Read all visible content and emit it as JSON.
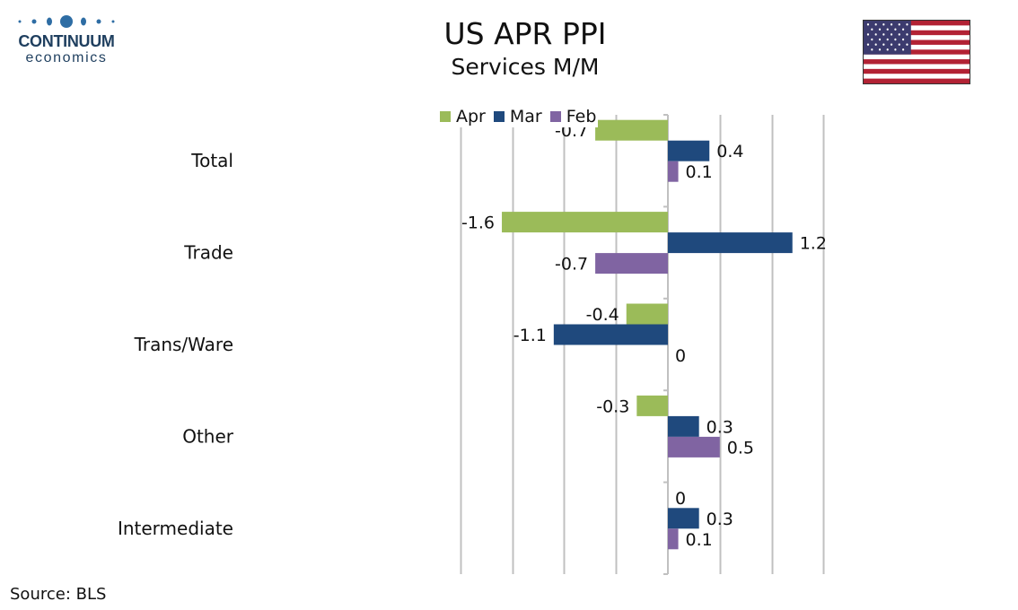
{
  "brand": {
    "name": "CONTINUUM",
    "sub": "economics"
  },
  "title": "US APR PPI",
  "subtitle": "Services M/M",
  "flag_icon": "us-flag",
  "source": "Source: BLS",
  "colors": {
    "Apr": "#9bbb59",
    "Mar": "#1f497d",
    "Feb": "#8064a2",
    "grid": "#c0c0c0",
    "logo": "#2e6da4"
  },
  "chart_data": {
    "type": "bar",
    "orientation": "horizontal",
    "categories": [
      "Total",
      "Trade",
      "Trans/Ware",
      "Other",
      "Intermediate"
    ],
    "series": [
      {
        "name": "Apr",
        "values": [
          -0.7,
          -1.6,
          -0.4,
          -0.3,
          0
        ]
      },
      {
        "name": "Mar",
        "values": [
          0.4,
          1.2,
          -1.1,
          0.3,
          0.3
        ]
      },
      {
        "name": "Feb",
        "values": [
          0.1,
          -0.7,
          0,
          0.5,
          0.1
        ]
      }
    ],
    "data_labels": [
      [
        "-0.7",
        "-1.6",
        "-0.4",
        "-0.3",
        "0"
      ],
      [
        "0.4",
        "1.2",
        "-1.1",
        "0.3",
        "0.3"
      ],
      [
        "0.1",
        "-0.7",
        "0",
        "0.5",
        "0.1"
      ]
    ],
    "xlim": [
      -2.0,
      1.5
    ],
    "grid": true,
    "legend": "top-center"
  }
}
